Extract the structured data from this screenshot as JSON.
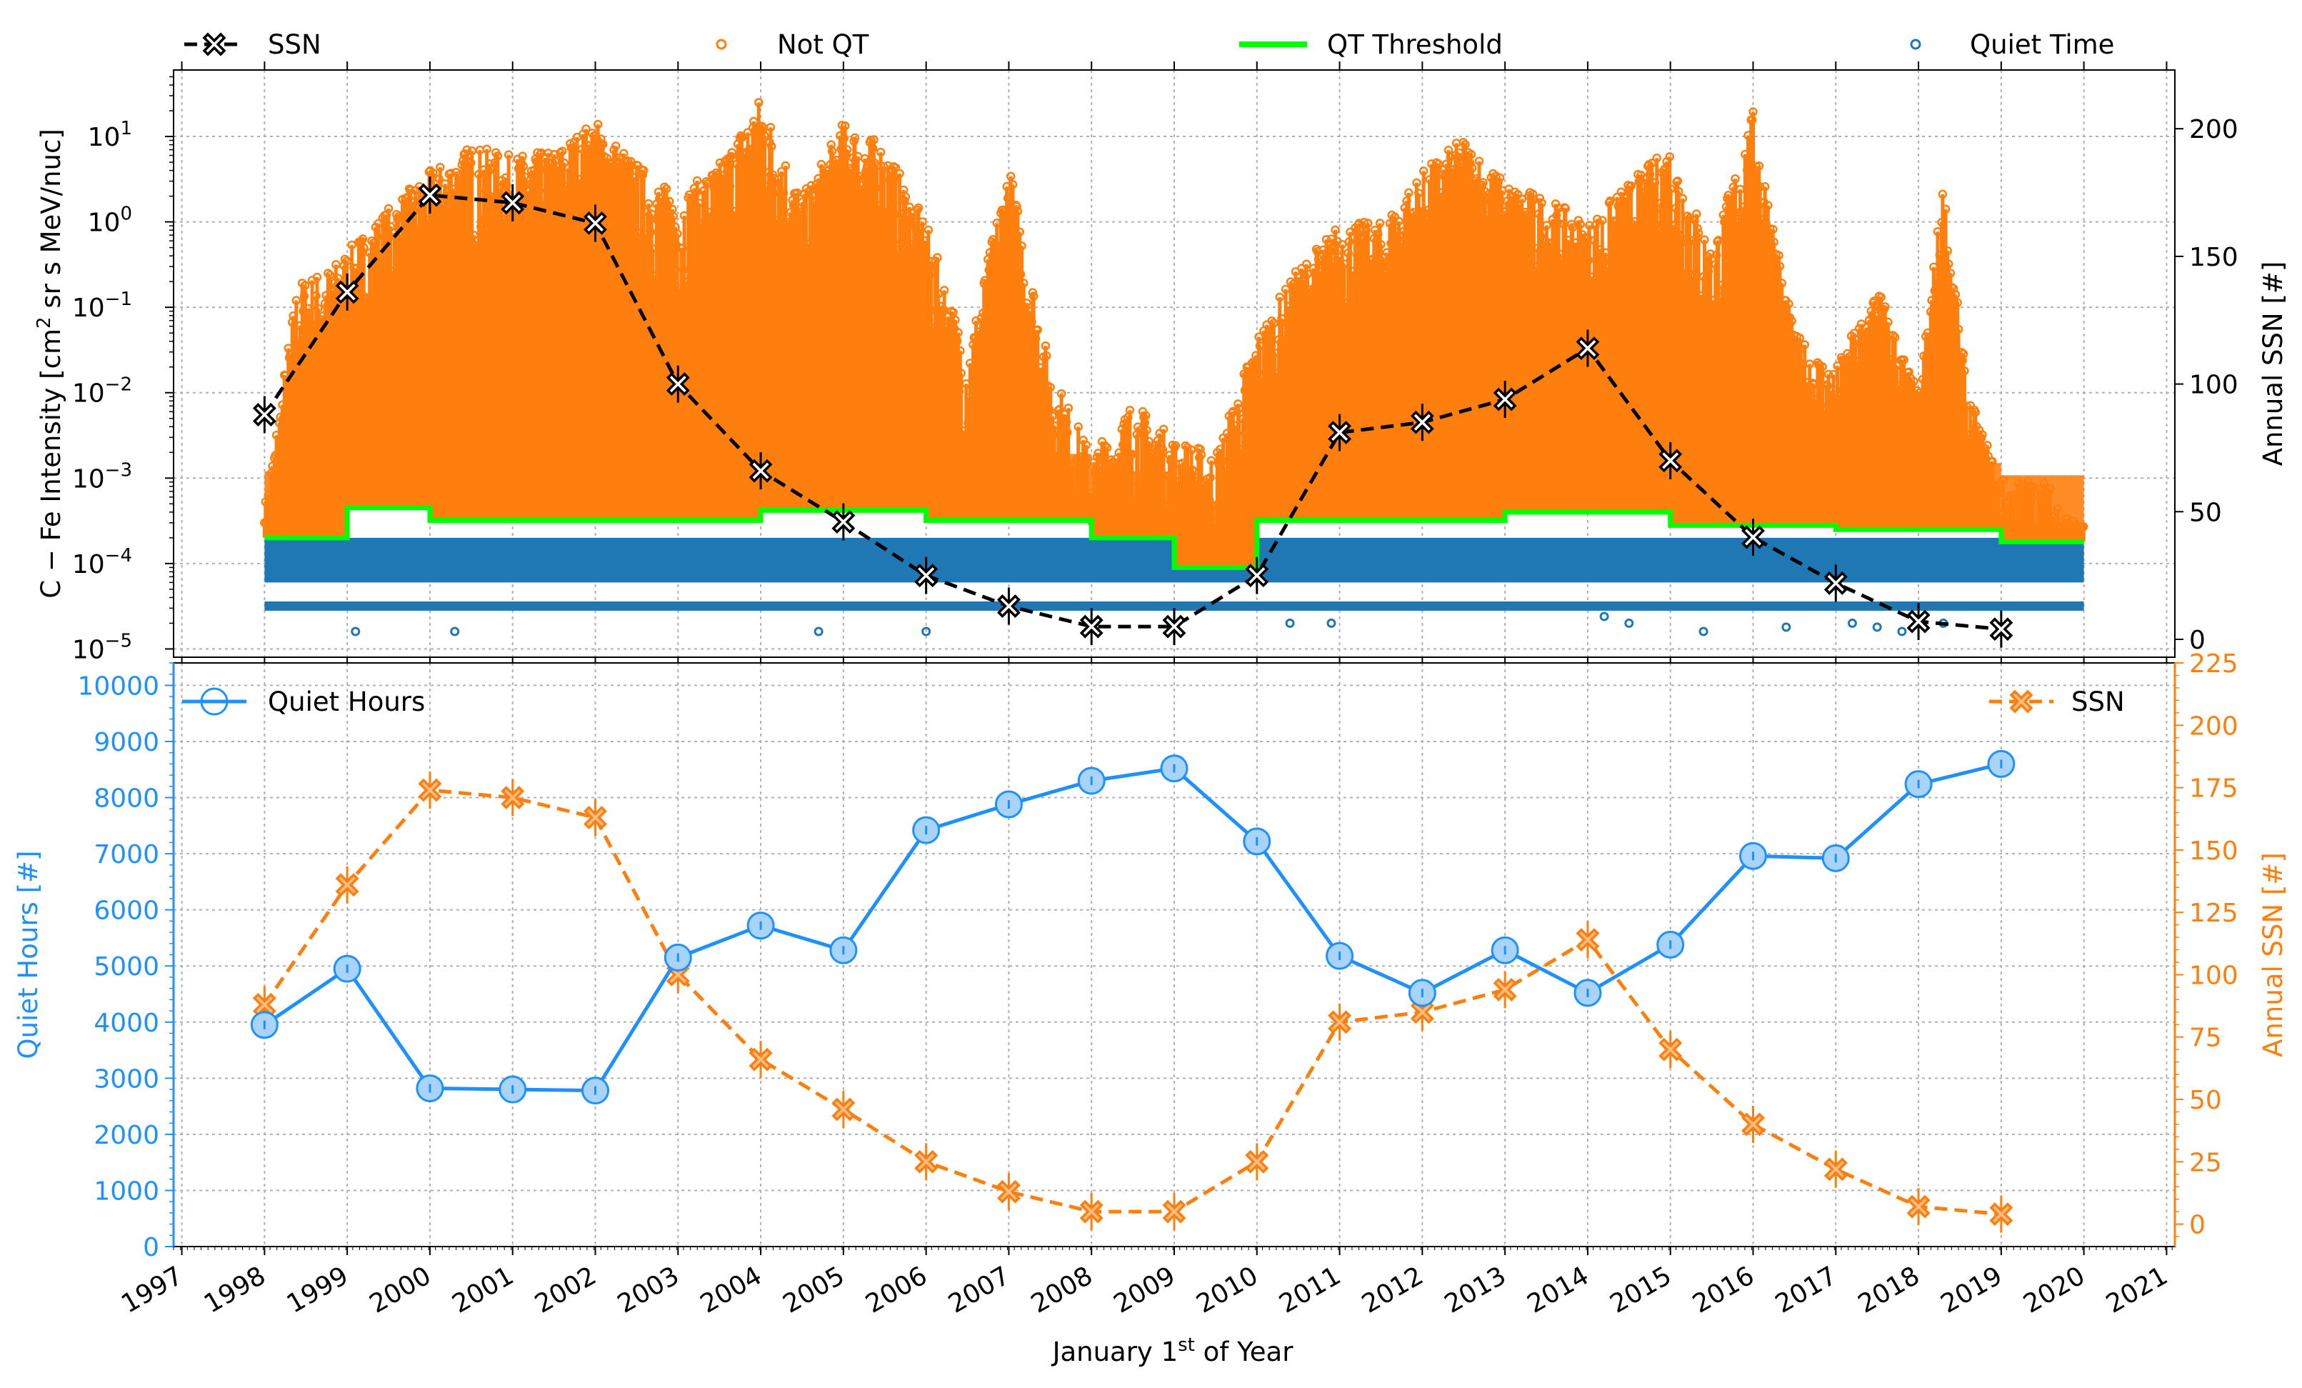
{
  "figure": {
    "x_axis_label": "January 1st of Year",
    "x_axis_label_main": "January 1",
    "x_axis_label_sup": "st",
    "x_axis_label_tail": " of Year"
  },
  "chart_data": [
    {
      "type": "scatter",
      "panel": "top",
      "ylabel": "C − Fe Intensity [cm² sr s MeV/nuc]",
      "ylabel_parts": [
        "C − Fe Intensity [cm",
        "2",
        " sr s MeV/nuc]"
      ],
      "yscale": "log",
      "ylim": [
        8e-06,
        60
      ],
      "ytick_labels": [
        "10",
        "10",
        "10",
        "10",
        "10",
        "10",
        "10"
      ],
      "ytick_exponents": [
        "1",
        "0",
        "−1",
        "−2",
        "−3",
        "−4",
        "−5"
      ],
      "ytick_values": [
        10,
        1,
        0.1,
        0.01,
        0.001,
        0.0001,
        1e-05
      ],
      "y2label": "Annual SSN [#]",
      "y2lim": [
        -7,
        223
      ],
      "y2ticks": [
        0,
        50,
        100,
        150,
        200
      ],
      "xlim": [
        1996.9,
        2021.1
      ],
      "legend": [
        "SSN",
        "Not QT",
        "QT Threshold",
        "Quiet Time"
      ],
      "legend_placement": "top (above plot)",
      "grid": true,
      "colors": {
        "not_qt": "#ff7f0e",
        "quiet_time": "#1f77b4",
        "threshold": "#00ff00",
        "ssn": "#000000"
      },
      "series": [
        {
          "name": "SSN",
          "x": [
            1998,
            1999,
            2000,
            2001,
            2002,
            2003,
            2004,
            2005,
            2006,
            2007,
            2008,
            2009,
            2010,
            2011,
            2012,
            2013,
            2014,
            2015,
            2016,
            2017,
            2018,
            2019
          ],
          "values": [
            88,
            136,
            174,
            171,
            163,
            100,
            66,
            46,
            25,
            13,
            5,
            5,
            25,
            81,
            85,
            94,
            114,
            70,
            40,
            22,
            7,
            4
          ]
        },
        {
          "name": "QT Threshold",
          "steps": [
            {
              "x0": 1998,
              "x1": 1999,
              "y": 0.0002
            },
            {
              "x0": 1999,
              "x1": 2000,
              "y": 0.00045
            },
            {
              "x0": 2000,
              "x1": 2004,
              "y": 0.00032
            },
            {
              "x0": 2004,
              "x1": 2006,
              "y": 0.00042
            },
            {
              "x0": 2006,
              "x1": 2008,
              "y": 0.00032
            },
            {
              "x0": 2008,
              "x1": 2009,
              "y": 0.0002
            },
            {
              "x0": 2009,
              "x1": 2010,
              "y": 9e-05
            },
            {
              "x0": 2010,
              "x1": 2013,
              "y": 0.00032
            },
            {
              "x0": 2013,
              "x1": 2015,
              "y": 0.0004
            },
            {
              "x0": 2015,
              "x1": 2017,
              "y": 0.00028
            },
            {
              "x0": 2017,
              "x1": 2019,
              "y": 0.00025
            },
            {
              "x0": 2019,
              "x1": 2020,
              "y": 0.00018
            }
          ]
        },
        {
          "name": "Not QT",
          "upper_envelope": [
            [
              1998,
              0.0005
            ],
            [
              1998.4,
              0.2
            ],
            [
              1998.8,
              0.3
            ],
            [
              1999.5,
              1.5
            ],
            [
              2000,
              4
            ],
            [
              2000.5,
              8
            ],
            [
              2001,
              6
            ],
            [
              2001.5,
              7
            ],
            [
              2002,
              16
            ],
            [
              2002.5,
              5
            ],
            [
              2003,
              2
            ],
            [
              2003.5,
              5
            ],
            [
              2004,
              30
            ],
            [
              2004.5,
              2
            ],
            [
              2005,
              15
            ],
            [
              2005.5,
              8
            ],
            [
              2006,
              1
            ],
            [
              2006.5,
              0.03
            ],
            [
              2007,
              5
            ],
            [
              2007.5,
              0.02
            ],
            [
              2008,
              0.002
            ],
            [
              2008.5,
              0.008
            ],
            [
              2009,
              0.003
            ],
            [
              2009.5,
              0.002
            ],
            [
              2010,
              0.05
            ],
            [
              2010.5,
              0.3
            ],
            [
              2011,
              1
            ],
            [
              2011.5,
              1
            ],
            [
              2012,
              4
            ],
            [
              2012.5,
              10
            ],
            [
              2013,
              3
            ],
            [
              2013.5,
              2
            ],
            [
              2014,
              1
            ],
            [
              2014.5,
              3
            ],
            [
              2015,
              8
            ],
            [
              2015.5,
              0.5
            ],
            [
              2016,
              20
            ],
            [
              2016.5,
              0.05
            ],
            [
              2017,
              0.02
            ],
            [
              2017.5,
              0.2
            ],
            [
              2018,
              0.01
            ],
            [
              2018.3,
              3
            ],
            [
              2018.6,
              0.01
            ],
            [
              2019,
              0.001
            ],
            [
              2019.5,
              0.001
            ],
            [
              2020,
              0.0003
            ]
          ]
        },
        {
          "name": "Quiet Time",
          "bands": [
            {
              "x0": 1998,
              "x1": 2020,
              "ylow": 2.8e-05,
              "yhigh": 3.6e-05
            },
            {
              "x0": 1998,
              "x1": 2020,
              "ylow": 6e-05,
              "yhigh": 0.0002
            }
          ],
          "outliers_x": [
            1999.1,
            2000.3,
            2004.7,
            2006,
            2010.4,
            2010.9,
            2014.2,
            2014.5,
            2015.4,
            2016.4,
            2017.2,
            2017.5,
            2017.8,
            2018.3
          ],
          "outliers_y": [
            1.6e-05,
            1.6e-05,
            1.6e-05,
            1.6e-05,
            2e-05,
            2e-05,
            2.4e-05,
            2e-05,
            1.6e-05,
            1.8e-05,
            2e-05,
            1.8e-05,
            1.6e-05,
            2e-05
          ]
        }
      ]
    },
    {
      "type": "line",
      "panel": "bottom",
      "ylabel": "Quiet Hours [#]",
      "ylim": [
        0,
        10400
      ],
      "yticks": [
        0,
        1000,
        2000,
        3000,
        4000,
        5000,
        6000,
        7000,
        8000,
        9000,
        10000
      ],
      "y2label": "Annual SSN [#]",
      "y2lim": [
        -9,
        225
      ],
      "y2ticks": [
        0,
        25,
        50,
        75,
        100,
        125,
        150,
        175,
        200,
        225
      ],
      "xlim": [
        1996.9,
        2021.1
      ],
      "xticks": [
        1997,
        1998,
        1999,
        2000,
        2001,
        2002,
        2003,
        2004,
        2005,
        2006,
        2007,
        2008,
        2009,
        2010,
        2011,
        2012,
        2013,
        2014,
        2015,
        2016,
        2017,
        2018,
        2019,
        2020,
        2021
      ],
      "legend": [
        "Quiet Hours",
        "SSN"
      ],
      "legend_placement": "top-left / top-right",
      "grid": true,
      "colors": {
        "quiet_hours": "#1e90ff",
        "ssn": "#ff7f0e"
      },
      "series": [
        {
          "name": "Quiet Hours",
          "x": [
            1998,
            1999,
            2000,
            2001,
            2002,
            2003,
            2004,
            2005,
            2006,
            2007,
            2008,
            2009,
            2010,
            2011,
            2012,
            2013,
            2014,
            2015,
            2016,
            2017,
            2018,
            2019
          ],
          "values": [
            3950,
            4950,
            2820,
            2800,
            2780,
            5150,
            5720,
            5280,
            7420,
            7880,
            8300,
            8520,
            7220,
            5180,
            4520,
            5280,
            4520,
            5380,
            6960,
            6920,
            8240,
            8600
          ]
        },
        {
          "name": "SSN",
          "x": [
            1998,
            1999,
            2000,
            2001,
            2002,
            2003,
            2004,
            2005,
            2006,
            2007,
            2008,
            2009,
            2010,
            2011,
            2012,
            2013,
            2014,
            2015,
            2016,
            2017,
            2018,
            2019
          ],
          "values": [
            88,
            136,
            174,
            171,
            163,
            100,
            66,
            46,
            25,
            13,
            5,
            5,
            25,
            81,
            85,
            94,
            114,
            70,
            40,
            22,
            7,
            4
          ]
        }
      ]
    }
  ]
}
